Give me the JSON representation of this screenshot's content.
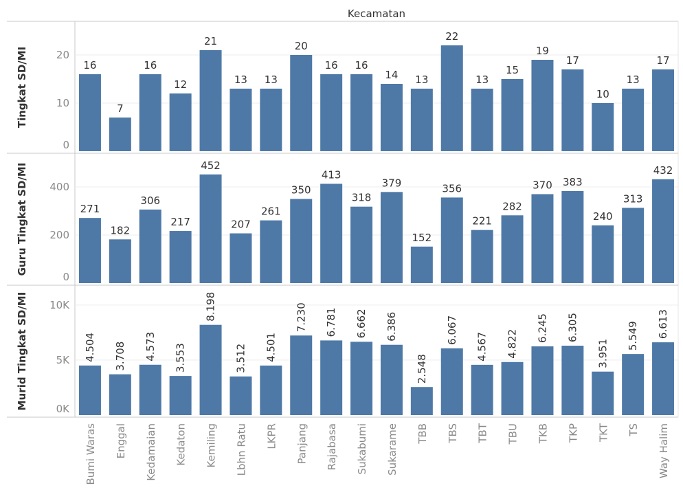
{
  "chart_data": {
    "type": "bar",
    "title": "Kecamatan",
    "bar_color": "#4e79a7",
    "grid": true,
    "categories": [
      "Bumi Waras",
      "Enggal",
      "Kedamaian",
      "Kedaton",
      "Kemiling",
      "Lbhn Ratu",
      "LKPR",
      "Panjang",
      "Rajabasa",
      "Sukabumi",
      "Sukarame",
      "TBB",
      "TBS",
      "TBT",
      "TBU",
      "TKB",
      "TKP",
      "TKT",
      "TS",
      "Way Halim"
    ],
    "panels": [
      {
        "ylabel": "Tingkat SD/MI",
        "ylim": [
          0,
          27
        ],
        "yticks": [
          0,
          10,
          20
        ],
        "ytick_labels": [
          "0",
          "10",
          "20"
        ],
        "values": [
          16,
          7,
          16,
          12,
          21,
          13,
          13,
          20,
          16,
          16,
          14,
          13,
          22,
          13,
          15,
          19,
          17,
          10,
          13,
          17
        ],
        "value_labels": [
          "16",
          "7",
          "16",
          "12",
          "21",
          "13",
          "13",
          "20",
          "16",
          "16",
          "14",
          "13",
          "22",
          "13",
          "15",
          "19",
          "17",
          "10",
          "13",
          "17"
        ],
        "label_orientation": "horizontal"
      },
      {
        "ylabel": "Guru Tingkat SD/MI",
        "ylim": [
          0,
          540
        ],
        "yticks": [
          0,
          200,
          400
        ],
        "ytick_labels": [
          "0",
          "200",
          "400"
        ],
        "values": [
          271,
          182,
          306,
          217,
          452,
          207,
          261,
          350,
          413,
          318,
          379,
          152,
          356,
          221,
          282,
          370,
          383,
          240,
          313,
          432
        ],
        "value_labels": [
          "271",
          "182",
          "306",
          "217",
          "452",
          "207",
          "261",
          "350",
          "413",
          "318",
          "379",
          "152",
          "356",
          "221",
          "282",
          "370",
          "383",
          "240",
          "313",
          "432"
        ],
        "label_orientation": "horizontal"
      },
      {
        "ylabel": "Murid Tingkat SD/MI",
        "ylim": [
          0,
          11800
        ],
        "yticks": [
          0,
          5000,
          10000
        ],
        "ytick_labels": [
          "0K",
          "5K",
          "10K"
        ],
        "values": [
          4504,
          3708,
          4573,
          3553,
          8198,
          3512,
          4501,
          7230,
          6781,
          6662,
          6386,
          2548,
          6067,
          4567,
          4822,
          6245,
          6305,
          3951,
          5549,
          6613
        ],
        "value_labels": [
          "4.504",
          "3.708",
          "4.573",
          "3.553",
          "8.198",
          "3.512",
          "4.501",
          "7.230",
          "6.781",
          "6.662",
          "6.386",
          "2.548",
          "6.067",
          "4.567",
          "4.822",
          "6.245",
          "6.305",
          "3.951",
          "5.549",
          "6.613"
        ],
        "label_orientation": "vertical"
      }
    ]
  }
}
